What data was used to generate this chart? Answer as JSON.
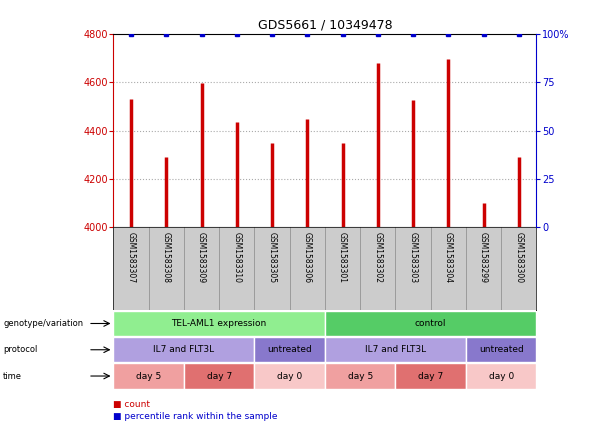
{
  "title": "GDS5661 / 10349478",
  "samples": [
    "GSM1583307",
    "GSM1583308",
    "GSM1583309",
    "GSM1583310",
    "GSM1583305",
    "GSM1583306",
    "GSM1583301",
    "GSM1583302",
    "GSM1583303",
    "GSM1583304",
    "GSM1583299",
    "GSM1583300"
  ],
  "counts": [
    4530,
    4290,
    4595,
    4435,
    4350,
    4450,
    4350,
    4680,
    4525,
    4695,
    4100,
    4290
  ],
  "percentiles": [
    100,
    100,
    100,
    100,
    100,
    100,
    100,
    100,
    100,
    100,
    100,
    100
  ],
  "ylim_left": [
    4000,
    4800
  ],
  "ylim_right": [
    0,
    100
  ],
  "yticks_left": [
    4000,
    4200,
    4400,
    4600,
    4800
  ],
  "yticks_right": [
    0,
    25,
    50,
    75,
    100
  ],
  "bar_color": "#cc0000",
  "dot_color": "#0000cc",
  "grid_color": "#aaaaaa",
  "genotype_groups": [
    {
      "label": "TEL-AML1 expression",
      "start": 0,
      "end": 6,
      "color": "#90ee90"
    },
    {
      "label": "control",
      "start": 6,
      "end": 12,
      "color": "#55cc66"
    }
  ],
  "protocol_groups": [
    {
      "label": "IL7 and FLT3L",
      "start": 0,
      "end": 4,
      "color": "#b0a0e0"
    },
    {
      "label": "untreated",
      "start": 4,
      "end": 6,
      "color": "#8878cc"
    },
    {
      "label": "IL7 and FLT3L",
      "start": 6,
      "end": 10,
      "color": "#b0a0e0"
    },
    {
      "label": "untreated",
      "start": 10,
      "end": 12,
      "color": "#8878cc"
    }
  ],
  "time_groups": [
    {
      "label": "day 5",
      "start": 0,
      "end": 2,
      "color": "#f0a0a0"
    },
    {
      "label": "day 7",
      "start": 2,
      "end": 4,
      "color": "#e07070"
    },
    {
      "label": "day 0",
      "start": 4,
      "end": 6,
      "color": "#f8c8c8"
    },
    {
      "label": "day 5",
      "start": 6,
      "end": 8,
      "color": "#f0a0a0"
    },
    {
      "label": "day 7",
      "start": 8,
      "end": 10,
      "color": "#e07070"
    },
    {
      "label": "day 0",
      "start": 10,
      "end": 12,
      "color": "#f8c8c8"
    }
  ],
  "row_labels": [
    "genotype/variation",
    "protocol",
    "time"
  ],
  "legend_count_color": "#cc0000",
  "legend_percentile_color": "#0000cc",
  "bg_color": "#ffffff",
  "names_bg_color": "#cccccc"
}
